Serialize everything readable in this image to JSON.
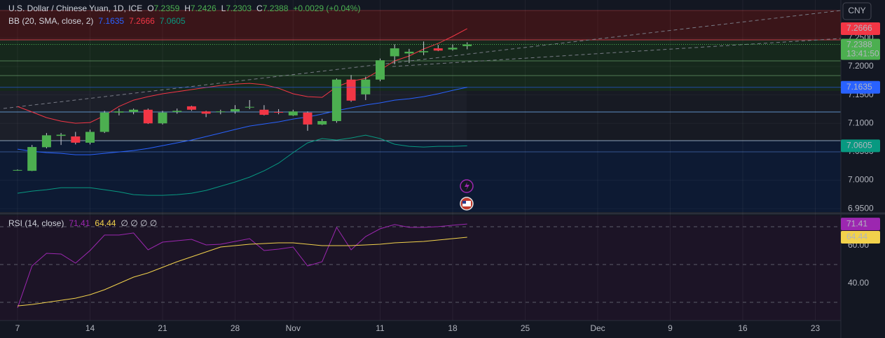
{
  "chart_data": [
    {
      "type": "candlestick",
      "title": "U.S. Dollar / Chinese Yuan, 1D, ICE",
      "ohlc_labels": [
        "O",
        "H",
        "L",
        "C"
      ],
      "change": "+0.0029 (+0.04%)",
      "currency": "CNY",
      "countdown": "13:41:50",
      "up_color": "#4caf50",
      "down_color": "#f23645",
      "wick_color": "#c9ccd4",
      "x": [
        "Oct 7",
        "Oct 8",
        "Oct 9",
        "Oct 10",
        "Oct 11",
        "Oct 14",
        "Oct 15",
        "Oct 16",
        "Oct 17",
        "Oct 18",
        "Oct 21",
        "Oct 22",
        "Oct 23",
        "Oct 24",
        "Oct 25",
        "Oct 28",
        "Oct 29",
        "Oct 30",
        "Oct 31",
        "Nov 1",
        "Nov 4",
        "Nov 5",
        "Nov 6",
        "Nov 7",
        "Nov 8",
        "Nov 11",
        "Nov 12",
        "Nov 13",
        "Nov 14",
        "Nov 15",
        "Nov 18",
        "Nov 19"
      ],
      "open": [
        7.018,
        7.0165,
        7.058,
        7.078,
        7.077,
        7.066,
        7.085,
        7.119,
        7.12,
        7.124,
        7.1,
        7.12,
        7.13,
        7.121,
        7.121,
        7.121,
        7.128,
        7.124,
        7.12,
        7.114,
        7.119,
        7.098,
        7.104,
        7.177,
        7.151,
        7.177,
        7.218,
        7.223,
        7.225,
        7.232,
        7.23,
        7.2359
      ],
      "high": [
        7.019,
        7.062,
        7.083,
        7.083,
        7.085,
        7.089,
        7.122,
        7.126,
        7.126,
        7.126,
        7.122,
        7.126,
        7.131,
        7.122,
        7.124,
        7.132,
        7.141,
        7.132,
        7.125,
        7.124,
        7.121,
        7.108,
        7.179,
        7.185,
        7.182,
        7.214,
        7.239,
        7.231,
        7.244,
        7.238,
        7.239,
        7.2426
      ],
      "low": [
        7.017,
        7.016,
        7.056,
        7.062,
        7.063,
        7.063,
        7.083,
        7.114,
        7.116,
        7.099,
        7.098,
        7.117,
        7.122,
        7.111,
        7.116,
        7.117,
        7.125,
        7.114,
        7.116,
        7.113,
        7.087,
        7.097,
        7.101,
        7.138,
        7.141,
        7.174,
        7.204,
        7.206,
        7.22,
        7.227,
        7.228,
        7.2303
      ],
      "close": [
        7.018,
        7.0584,
        7.079,
        7.08,
        7.066,
        7.085,
        7.119,
        7.121,
        7.124,
        7.1,
        7.119,
        7.122,
        7.124,
        7.117,
        7.121,
        7.125,
        7.129,
        7.115,
        7.119,
        7.121,
        7.098,
        7.104,
        7.177,
        7.14,
        7.177,
        7.211,
        7.232,
        7.226,
        7.227,
        7.228,
        7.233,
        7.2388
      ],
      "indicator": "BB (20, SMA, close, 2)",
      "series": [
        {
          "color": "#2962ff",
          "values": [
            7.0547,
            7.051,
            7.0485,
            7.0473,
            7.0448,
            7.0448,
            7.0473,
            7.0498,
            7.0522,
            7.0559,
            7.0608,
            7.0658,
            7.0707,
            7.0768,
            7.083,
            7.0892,
            7.0953,
            7.099,
            7.1027,
            7.1076,
            7.1113,
            7.1163,
            7.1224,
            7.1273,
            7.1323,
            7.136,
            7.1409,
            7.1433,
            7.147,
            7.152,
            7.1581,
            7.1635
          ]
        },
        {
          "color": "#f23645",
          "values": [
            7.1298,
            7.12,
            7.1101,
            7.1039,
            7.1002,
            7.1015,
            7.1138,
            7.1298,
            7.1409,
            7.147,
            7.152,
            7.1557,
            7.1594,
            7.1631,
            7.1667,
            7.1692,
            7.1704,
            7.168,
            7.1618,
            7.152,
            7.147,
            7.1458,
            7.1643,
            7.1741,
            7.1791,
            7.1938,
            7.2099,
            7.2185,
            7.2308,
            7.2406,
            7.253,
            7.2666
          ]
        },
        {
          "color": "#089981",
          "values": [
            6.9771,
            6.9808,
            6.9833,
            6.9869,
            6.9869,
            6.9869,
            6.9833,
            6.9796,
            6.9746,
            6.9734,
            6.9734,
            6.9746,
            6.9771,
            6.982,
            6.9894,
            6.9968,
            7.0054,
            7.0165,
            7.03,
            7.0485,
            7.0658,
            7.0732,
            7.0707,
            7.0744,
            7.0793,
            7.0732,
            7.0633,
            7.0596,
            7.0584,
            7.0596,
            7.0596,
            7.0605
          ]
        }
      ],
      "ylim": [
        6.944,
        7.317
      ],
      "yticks": [
        {
          "value": 7.25,
          "label": "7.2500"
        },
        {
          "value": 7.2,
          "label": "7.2000"
        },
        {
          "value": 7.15,
          "label": "7.1500"
        },
        {
          "value": 7.1,
          "label": "7.1000"
        },
        {
          "value": 7.05,
          "label": "7.0500"
        },
        {
          "value": 7.0,
          "label": "7.0000"
        },
        {
          "value": 6.95,
          "label": "6.9500"
        }
      ],
      "xticks": [
        {
          "value": "Oct 7",
          "label": "7"
        },
        {
          "value": "Oct 14",
          "label": "14"
        },
        {
          "value": "Oct 21",
          "label": "21"
        },
        {
          "value": "Oct 28",
          "label": "28"
        },
        {
          "value": "Nov 1",
          "label": "Nov"
        },
        {
          "value": "Nov 11",
          "label": "11"
        },
        {
          "value": "Nov 18",
          "label": "18"
        },
        {
          "value": "Nov 25",
          "label": "25"
        },
        {
          "value": "Dec 2",
          "label": "Dec"
        },
        {
          "value": "Dec 9",
          "label": "9"
        },
        {
          "value": "Dec 16",
          "label": "16"
        },
        {
          "value": "Dec 23",
          "label": "23"
        }
      ]
    },
    {
      "type": "line",
      "title": "RSI (14, close)",
      "extra": "∅ ∅ ∅ ∅",
      "series": [
        {
          "color": "#9c27b0",
          "values": [
            27.04,
            49.26,
            55.93,
            55.56,
            50.74,
            57.41,
            65.56,
            65.56,
            66.67,
            57.78,
            61.85,
            62.59,
            63.33,
            60.37,
            60.74,
            62.22,
            63.7,
            57.41,
            58.15,
            59.26,
            49.26,
            51.48,
            69.63,
            57.78,
            64.81,
            68.89,
            71.11,
            69.63,
            69.63,
            70.0,
            70.74,
            71.41
          ]
        },
        {
          "color": "#f2d24c",
          "values": [
            28.15,
            28.89,
            30.0,
            31.11,
            32.22,
            34.07,
            36.67,
            40.0,
            43.33,
            45.56,
            48.52,
            51.48,
            54.07,
            56.67,
            59.26,
            60.0,
            60.74,
            61.11,
            61.48,
            61.48,
            60.74,
            60.0,
            60.0,
            60.0,
            60.37,
            60.74,
            61.48,
            61.85,
            62.22,
            62.96,
            63.7,
            64.44
          ]
        }
      ],
      "levels": [
        70,
        50,
        30
      ],
      "ylim": [
        20.4,
        75.9
      ],
      "yticks": [
        {
          "value": 60,
          "label": "60.00"
        },
        {
          "value": 40,
          "label": "40.00"
        }
      ]
    }
  ]
}
